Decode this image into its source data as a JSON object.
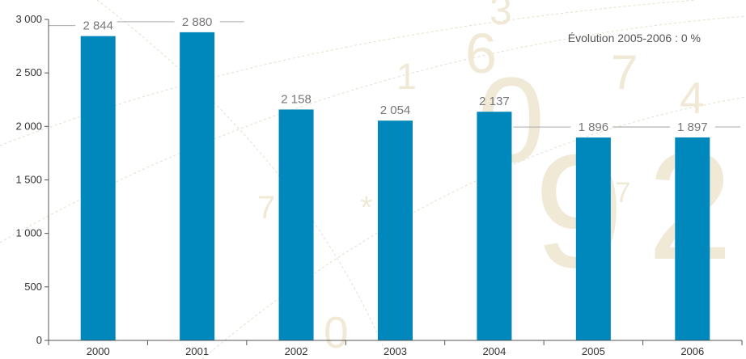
{
  "chart_data": {
    "type": "bar",
    "categories": [
      "2000",
      "2001",
      "2002",
      "2003",
      "2004",
      "2005",
      "2006"
    ],
    "values": [
      2844,
      2880,
      2158,
      2054,
      2137,
      1896,
      1897
    ],
    "value_labels": [
      "2 844",
      "2 880",
      "2 158",
      "2 054",
      "2 137",
      "1 896",
      "1 897"
    ],
    "title": "",
    "xlabel": "",
    "ylabel": "",
    "ylim": [
      0,
      3000
    ],
    "yticks": [
      0,
      500,
      1000,
      1500,
      2000,
      2500,
      3000
    ],
    "ytick_labels": [
      "0",
      "500",
      "1 000",
      "1 500",
      "2 000",
      "2 500",
      "3 000"
    ],
    "annotation": "Évolution 2005-2006 : 0 %",
    "grid": false,
    "legend": "none",
    "colors": {
      "bar": "#0087bb",
      "axis": "#555555",
      "guide_line": "#aaaaaa",
      "background_digits": "#efe9d6"
    }
  }
}
